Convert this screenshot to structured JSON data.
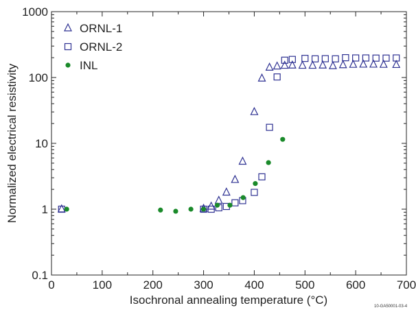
{
  "figure_id": "10-GA50001-03-4",
  "chart_data": {
    "type": "scatter",
    "xlabel": "Isochronal annealing temperature (°C)",
    "ylabel": "Normalized electrical resistivity",
    "xlim": [
      0,
      700
    ],
    "ylim": [
      0.1,
      1000
    ],
    "y_scale": "log",
    "x_ticks": [
      0,
      100,
      200,
      300,
      400,
      500,
      600,
      700
    ],
    "y_ticks": [
      0.1,
      1,
      10,
      100,
      1000
    ],
    "x_tick_labels": [
      "0",
      "100",
      "200",
      "300",
      "400",
      "500",
      "600",
      "700"
    ],
    "y_tick_labels": [
      "0.1",
      "1",
      "10",
      "100",
      "1000"
    ],
    "grid": false,
    "legend_position": "top-left",
    "series": [
      {
        "name": "ORNL-1",
        "marker": "open-triangle",
        "color": "#2e3192",
        "points": [
          [
            20,
            1.0
          ],
          [
            300,
            1.02
          ],
          [
            315,
            1.1
          ],
          [
            330,
            1.35
          ],
          [
            345,
            1.8
          ],
          [
            362,
            2.8
          ],
          [
            377,
            5.3
          ],
          [
            400,
            30
          ],
          [
            415,
            97
          ],
          [
            430,
            142
          ],
          [
            445,
            148
          ],
          [
            460,
            152
          ],
          [
            475,
            153
          ],
          [
            495,
            152
          ],
          [
            515,
            152
          ],
          [
            535,
            153
          ],
          [
            555,
            150
          ],
          [
            575,
            155
          ],
          [
            595,
            157
          ],
          [
            615,
            158
          ],
          [
            635,
            158
          ],
          [
            655,
            157
          ],
          [
            680,
            156
          ]
        ]
      },
      {
        "name": "ORNL-2",
        "marker": "open-square",
        "color": "#2e3192",
        "points": [
          [
            20,
            1.0
          ],
          [
            300,
            1.0
          ],
          [
            315,
            1.0
          ],
          [
            330,
            1.05
          ],
          [
            345,
            1.1
          ],
          [
            362,
            1.25
          ],
          [
            377,
            1.35
          ],
          [
            400,
            1.8
          ],
          [
            415,
            3.1
          ],
          [
            430,
            17.5
          ],
          [
            445,
            102
          ],
          [
            460,
            183
          ],
          [
            475,
            188
          ],
          [
            500,
            195
          ],
          [
            520,
            192
          ],
          [
            540,
            193
          ],
          [
            560,
            192
          ],
          [
            580,
            200
          ],
          [
            600,
            198
          ],
          [
            620,
            198
          ],
          [
            640,
            197
          ],
          [
            660,
            197
          ],
          [
            680,
            198
          ]
        ]
      },
      {
        "name": "INL",
        "marker": "filled-circle",
        "color": "#1a8a2a",
        "points": [
          [
            30,
            1.0
          ],
          [
            215,
            0.97
          ],
          [
            245,
            0.93
          ],
          [
            275,
            1.0
          ],
          [
            300,
            1.0
          ],
          [
            327,
            1.15
          ],
          [
            352,
            1.15
          ],
          [
            378,
            1.5
          ],
          [
            402,
            2.45
          ],
          [
            428,
            5.1
          ],
          [
            456,
            11.5
          ]
        ]
      }
    ]
  }
}
